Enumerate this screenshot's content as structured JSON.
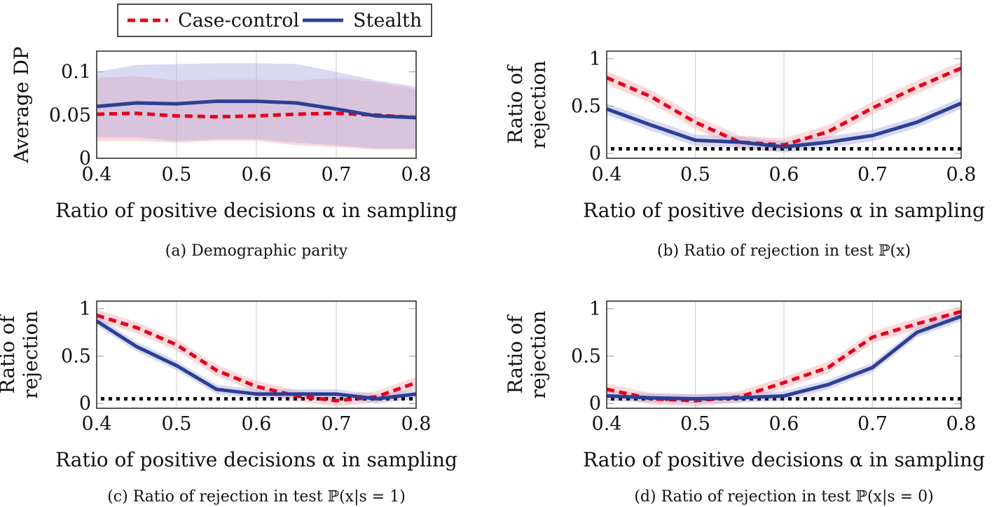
{
  "legend": {
    "placement": "top-left",
    "entries": [
      {
        "name": "Case-control",
        "color": "#e3001b",
        "style": "dashed"
      },
      {
        "name": "Stealth",
        "color": "#2b3f94",
        "style": "solid"
      }
    ]
  },
  "chart_data": [
    {
      "type": "line",
      "caption": "(a) Demographic parity",
      "xlabel": "Ratio of positive decisions α in sampling",
      "ylabel": [
        "Average DP"
      ],
      "xlim": [
        0.4,
        0.8
      ],
      "ylim": [
        0,
        0.124
      ],
      "xticks": [
        0.4,
        0.5,
        0.6,
        0.7,
        0.8
      ],
      "yticks": [
        0,
        0.05,
        0.1
      ],
      "ytick_labels": [
        "0",
        "0.05",
        "0.1"
      ],
      "grid": true,
      "x": [
        0.4,
        0.45,
        0.5,
        0.55,
        0.6,
        0.65,
        0.7,
        0.75,
        0.8
      ],
      "series": [
        {
          "name": "Case-control",
          "values": [
            0.051,
            0.052,
            0.049,
            0.048,
            0.049,
            0.051,
            0.052,
            0.05,
            0.047
          ],
          "lower": [
            0.02,
            0.02,
            0.018,
            0.02,
            0.02,
            0.015,
            0.013,
            0.01,
            0.01
          ],
          "upper": [
            0.093,
            0.095,
            0.09,
            0.091,
            0.091,
            0.09,
            0.093,
            0.088,
            0.08
          ]
        },
        {
          "name": "Stealth",
          "values": [
            0.06,
            0.064,
            0.063,
            0.066,
            0.066,
            0.064,
            0.057,
            0.049,
            0.047
          ],
          "lower": [
            0.024,
            0.024,
            0.02,
            0.022,
            0.022,
            0.018,
            0.015,
            0.011,
            0.011
          ],
          "upper": [
            0.1,
            0.108,
            0.109,
            0.11,
            0.11,
            0.109,
            0.1,
            0.09,
            0.083
          ]
        }
      ]
    },
    {
      "type": "line",
      "caption": "(b) Ratio of rejection in test ℙ(x)",
      "xlabel": "Ratio of positive decisions α in sampling",
      "ylabel": [
        "Ratio of",
        "rejection"
      ],
      "xlim": [
        0.4,
        0.8
      ],
      "ylim": [
        -0.05,
        1.08
      ],
      "xticks": [
        0.4,
        0.5,
        0.6,
        0.7,
        0.8
      ],
      "yticks": [
        0,
        0.5,
        1
      ],
      "ytick_labels": [
        "0",
        "0.5",
        "1"
      ],
      "grid": true,
      "reference_line": 0.05,
      "x": [
        0.4,
        0.45,
        0.5,
        0.55,
        0.6,
        0.65,
        0.7,
        0.75,
        0.8
      ],
      "series": [
        {
          "name": "Case-control",
          "values": [
            0.8,
            0.6,
            0.33,
            0.12,
            0.09,
            0.23,
            0.48,
            0.7,
            0.9
          ],
          "spread": 0.07
        },
        {
          "name": "Stealth",
          "values": [
            0.47,
            0.3,
            0.14,
            0.12,
            0.07,
            0.12,
            0.19,
            0.33,
            0.53
          ],
          "spread": 0.06
        }
      ]
    },
    {
      "type": "line",
      "caption": "(c) Ratio of rejection in test ℙ(x|s = 1)",
      "xlabel": "Ratio of positive decisions α in sampling",
      "ylabel": [
        "Ratio of",
        "rejection"
      ],
      "xlim": [
        0.4,
        0.8
      ],
      "ylim": [
        -0.05,
        1.08
      ],
      "xticks": [
        0.4,
        0.5,
        0.6,
        0.7,
        0.8
      ],
      "yticks": [
        0,
        0.5,
        1
      ],
      "ytick_labels": [
        "0",
        "0.5",
        "1"
      ],
      "grid": true,
      "reference_line": 0.05,
      "x": [
        0.4,
        0.45,
        0.5,
        0.55,
        0.6,
        0.65,
        0.7,
        0.75,
        0.8
      ],
      "series": [
        {
          "name": "Case-control",
          "values": [
            0.93,
            0.8,
            0.62,
            0.35,
            0.18,
            0.08,
            0.03,
            0.07,
            0.22
          ],
          "spread": 0.06
        },
        {
          "name": "Stealth",
          "values": [
            0.87,
            0.6,
            0.4,
            0.15,
            0.1,
            0.1,
            0.1,
            0.05,
            0.1
          ],
          "spread": 0.05
        }
      ]
    },
    {
      "type": "line",
      "caption": "(d) Ratio of rejection in test ℙ(x|s = 0)",
      "xlabel": "Ratio of positive decisions α in sampling",
      "ylabel": [
        "Ratio of",
        "rejection"
      ],
      "xlim": [
        0.4,
        0.8
      ],
      "ylim": [
        -0.05,
        1.08
      ],
      "xticks": [
        0.4,
        0.5,
        0.6,
        0.7,
        0.8
      ],
      "yticks": [
        0,
        0.5,
        1
      ],
      "ytick_labels": [
        "0",
        "0.5",
        "1"
      ],
      "grid": true,
      "reference_line": 0.05,
      "x": [
        0.4,
        0.45,
        0.5,
        0.55,
        0.6,
        0.65,
        0.7,
        0.75,
        0.8
      ],
      "series": [
        {
          "name": "Case-control",
          "values": [
            0.15,
            0.05,
            0.03,
            0.07,
            0.22,
            0.38,
            0.7,
            0.84,
            0.97
          ],
          "spread": 0.06
        },
        {
          "name": "Stealth",
          "values": [
            0.08,
            0.06,
            0.05,
            0.06,
            0.08,
            0.2,
            0.38,
            0.75,
            0.92
          ],
          "spread": 0.05
        }
      ]
    }
  ]
}
